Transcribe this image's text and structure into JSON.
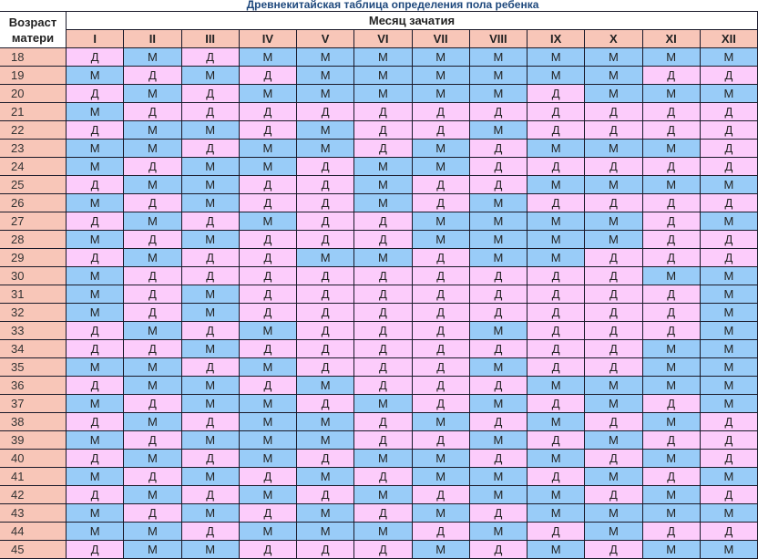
{
  "title": "Древнекитайская таблица определения пола ребенка",
  "header": {
    "age_label": "Возраст матери",
    "month_label": "Месяц зачатия"
  },
  "months": [
    "I",
    "II",
    "III",
    "IV",
    "V",
    "VI",
    "VII",
    "VIII",
    "IX",
    "X",
    "XI",
    "XII"
  ],
  "legend_colors": {
    "Д": "#fcccfb",
    "М": "#99ccf8"
  },
  "rows": [
    {
      "age": "18",
      "cells": [
        "Д",
        "М",
        "Д",
        "М",
        "М",
        "М",
        "М",
        "М",
        "М",
        "М",
        "М",
        "М"
      ]
    },
    {
      "age": "19",
      "cells": [
        "М",
        "Д",
        "М",
        "Д",
        "М",
        "М",
        "М",
        "М",
        "М",
        "М",
        "Д",
        "Д"
      ]
    },
    {
      "age": "20",
      "cells": [
        "Д",
        "М",
        "Д",
        "М",
        "М",
        "М",
        "М",
        "М",
        "Д",
        "М",
        "М",
        "М"
      ]
    },
    {
      "age": "21",
      "cells": [
        "М",
        "Д",
        "Д",
        "Д",
        "Д",
        "Д",
        "Д",
        "Д",
        "Д",
        "Д",
        "Д",
        "Д"
      ]
    },
    {
      "age": "22",
      "cells": [
        "Д",
        "М",
        "М",
        "Д",
        "М",
        "Д",
        "Д",
        "М",
        "Д",
        "Д",
        "Д",
        "Д"
      ]
    },
    {
      "age": "23",
      "cells": [
        "М",
        "М",
        "Д",
        "М",
        "М",
        "Д",
        "М",
        "Д",
        "М",
        "М",
        "М",
        "Д"
      ]
    },
    {
      "age": "24",
      "cells": [
        "М",
        "Д",
        "М",
        "М",
        "Д",
        "М",
        "М",
        "Д",
        "Д",
        "Д",
        "Д",
        "Д"
      ]
    },
    {
      "age": "25",
      "cells": [
        "Д",
        "М",
        "М",
        "Д",
        "Д",
        "М",
        "Д",
        "Д",
        "М",
        "М",
        "М",
        "М"
      ]
    },
    {
      "age": "26",
      "cells": [
        "М",
        "Д",
        "М",
        "Д",
        "Д",
        "М",
        "Д",
        "М",
        "Д",
        "Д",
        "Д",
        "Д"
      ]
    },
    {
      "age": "27",
      "cells": [
        "Д",
        "М",
        "Д",
        "М",
        "Д",
        "Д",
        "М",
        "М",
        "М",
        "М",
        "Д",
        "М"
      ]
    },
    {
      "age": "28",
      "cells": [
        "М",
        "Д",
        "М",
        "Д",
        "Д",
        "Д",
        "М",
        "М",
        "М",
        "М",
        "Д",
        "Д"
      ]
    },
    {
      "age": "29",
      "cells": [
        "Д",
        "М",
        "Д",
        "Д",
        "М",
        "М",
        "Д",
        "М",
        "М",
        "Д",
        "Д",
        "Д"
      ]
    },
    {
      "age": "30",
      "cells": [
        "М",
        "Д",
        "Д",
        "Д",
        "Д",
        "Д",
        "Д",
        "Д",
        "Д",
        "Д",
        "М",
        "М"
      ]
    },
    {
      "age": "31",
      "cells": [
        "М",
        "Д",
        "М",
        "Д",
        "Д",
        "Д",
        "Д",
        "Д",
        "Д",
        "Д",
        "Д",
        "М"
      ]
    },
    {
      "age": "32",
      "cells": [
        "М",
        "Д",
        "М",
        "Д",
        "Д",
        "Д",
        "Д",
        "Д",
        "Д",
        "Д",
        "Д",
        "М"
      ]
    },
    {
      "age": "33",
      "cells": [
        "Д",
        "М",
        "Д",
        "М",
        "Д",
        "Д",
        "Д",
        "М",
        "Д",
        "Д",
        "Д",
        "М"
      ]
    },
    {
      "age": "34",
      "cells": [
        "Д",
        "Д",
        "М",
        "Д",
        "Д",
        "Д",
        "Д",
        "Д",
        "Д",
        "Д",
        "М",
        "М"
      ]
    },
    {
      "age": "35",
      "cells": [
        "М",
        "М",
        "Д",
        "М",
        "Д",
        "Д",
        "Д",
        "М",
        "Д",
        "Д",
        "М",
        "М"
      ]
    },
    {
      "age": "36",
      "cells": [
        "Д",
        "М",
        "М",
        "Д",
        "М",
        "Д",
        "Д",
        "Д",
        "М",
        "М",
        "М",
        "М"
      ]
    },
    {
      "age": "37",
      "cells": [
        "М",
        "Д",
        "М",
        "М",
        "Д",
        "М",
        "Д",
        "М",
        "Д",
        "М",
        "Д",
        "М"
      ]
    },
    {
      "age": "38",
      "cells": [
        "Д",
        "М",
        "Д",
        "М",
        "М",
        "Д",
        "М",
        "Д",
        "М",
        "Д",
        "М",
        "Д"
      ]
    },
    {
      "age": "39",
      "cells": [
        "М",
        "Д",
        "М",
        "М",
        "М",
        "Д",
        "Д",
        "М",
        "Д",
        "М",
        "Д",
        "Д"
      ]
    },
    {
      "age": "40",
      "cells": [
        "Д",
        "М",
        "Д",
        "М",
        "Д",
        "М",
        "М",
        "Д",
        "М",
        "Д",
        "М",
        "Д"
      ]
    },
    {
      "age": "41",
      "cells": [
        "М",
        "Д",
        "М",
        "Д",
        "М",
        "Д",
        "М",
        "М",
        "Д",
        "М",
        "Д",
        "М"
      ]
    },
    {
      "age": "42",
      "cells": [
        "Д",
        "М",
        "Д",
        "М",
        "Д",
        "М",
        "Д",
        "М",
        "М",
        "Д",
        "М",
        "Д"
      ]
    },
    {
      "age": "43",
      "cells": [
        "М",
        "Д",
        "М",
        "Д",
        "М",
        "Д",
        "М",
        "Д",
        "М",
        "М",
        "М",
        "М"
      ]
    },
    {
      "age": "44",
      "cells": [
        "М",
        "М",
        "Д",
        "М",
        "М",
        "М",
        "Д",
        "М",
        "Д",
        "М",
        "Д",
        "Д"
      ]
    },
    {
      "age": "45",
      "cells": [
        "Д",
        "М",
        "М",
        "Д",
        "Д",
        "Д",
        "М",
        "Д",
        "М",
        "Д",
        "М",
        "М"
      ]
    }
  ]
}
